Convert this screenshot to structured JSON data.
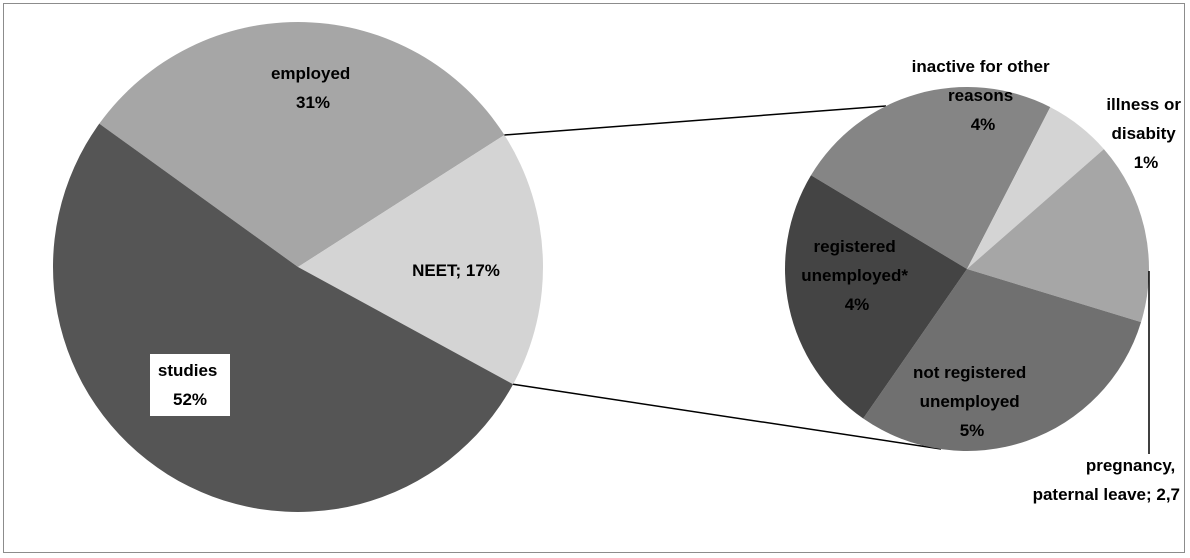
{
  "chart_data": [
    {
      "type": "pie",
      "title": "",
      "slices": [
        {
          "name": "employed",
          "value": 31,
          "label": [
            "employed",
            "31%"
          ],
          "color": "#a6a6a6"
        },
        {
          "name": "NEET",
          "value": 17,
          "label": [
            "NEET; 17%"
          ],
          "color": "#d4d4d4"
        },
        {
          "name": "studies",
          "value": 52,
          "label": [
            "studies",
            "52%"
          ],
          "color": "#555555"
        }
      ],
      "exploded_slice": "NEET"
    },
    {
      "type": "pie",
      "title": "",
      "parent_slice": "NEET",
      "slices": [
        {
          "name": "inactive for other reasons",
          "value": 4,
          "label": [
            "inactive for other",
            "reasons",
            "4%"
          ],
          "color": "#858585"
        },
        {
          "name": "illness or disabity",
          "value": 1,
          "label": [
            "illness or",
            "disabity",
            "1%"
          ],
          "color": "#d4d4d4"
        },
        {
          "name": "pregnancy, paternal leave",
          "value": 2.7,
          "label": [
            "pregnancy,",
            "paternal leave; 2,7"
          ],
          "color": "#a6a6a6"
        },
        {
          "name": "not registered unemployed",
          "value": 5,
          "label": [
            "not registered",
            "unemployed",
            "5%"
          ],
          "color": "#707070"
        },
        {
          "name": "registered unemployed*",
          "value": 4,
          "label": [
            "registered",
            "unemployed*",
            "4%"
          ],
          "color": "#444444"
        }
      ]
    }
  ]
}
